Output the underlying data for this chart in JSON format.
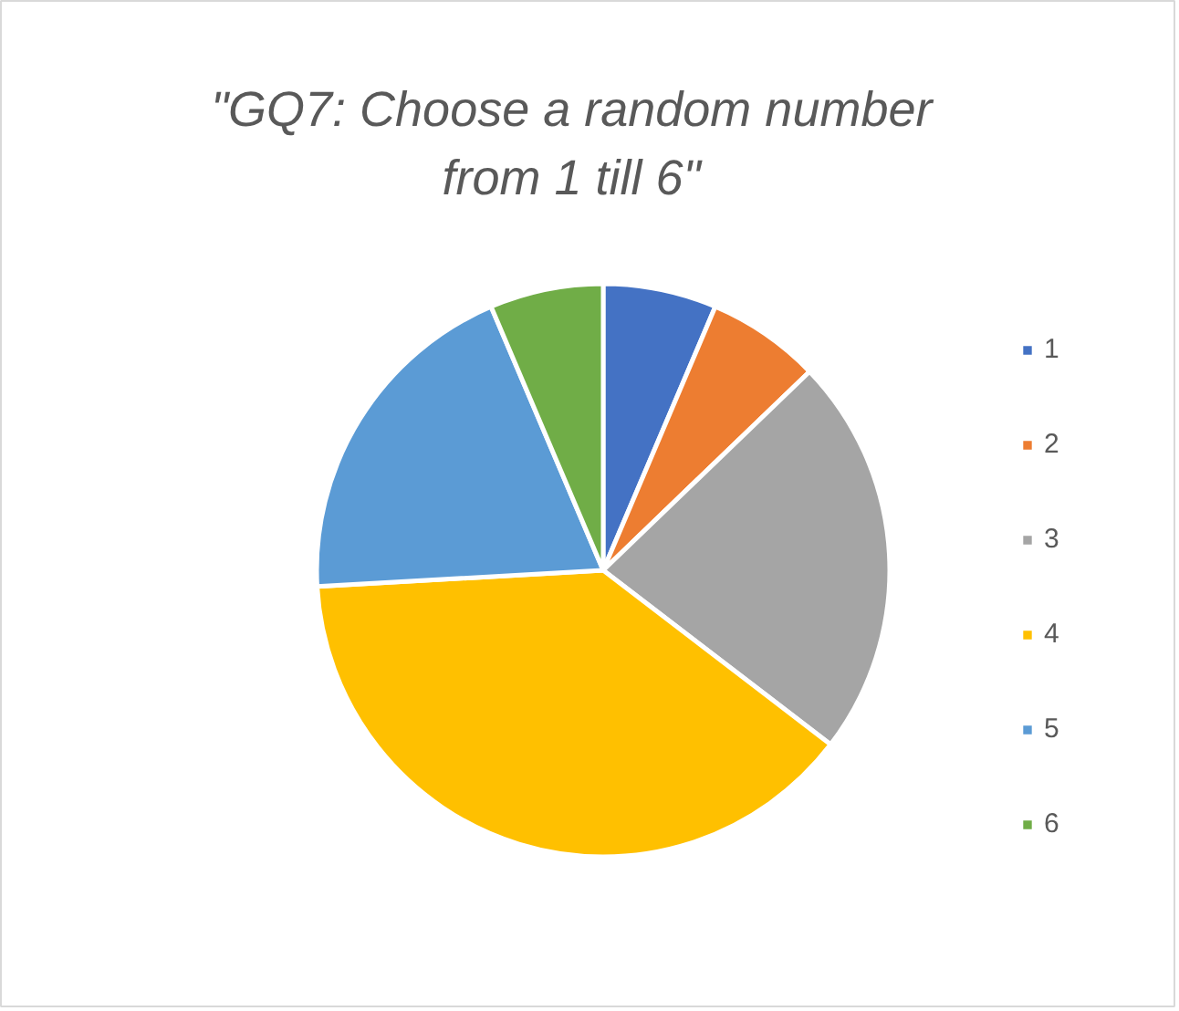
{
  "chart_data": {
    "type": "pie",
    "title": "\"GQ7: Choose a random number from 1 till 6\"",
    "categories": [
      "1",
      "2",
      "3",
      "4",
      "5",
      "6"
    ],
    "values": [
      6.4,
      6.4,
      22.6,
      38.7,
      19.5,
      6.4
    ],
    "colors": [
      "#4472c4",
      "#ed7d31",
      "#a5a5a5",
      "#ffc000",
      "#5b9bd5",
      "#70ad47"
    ],
    "legend": "right"
  }
}
